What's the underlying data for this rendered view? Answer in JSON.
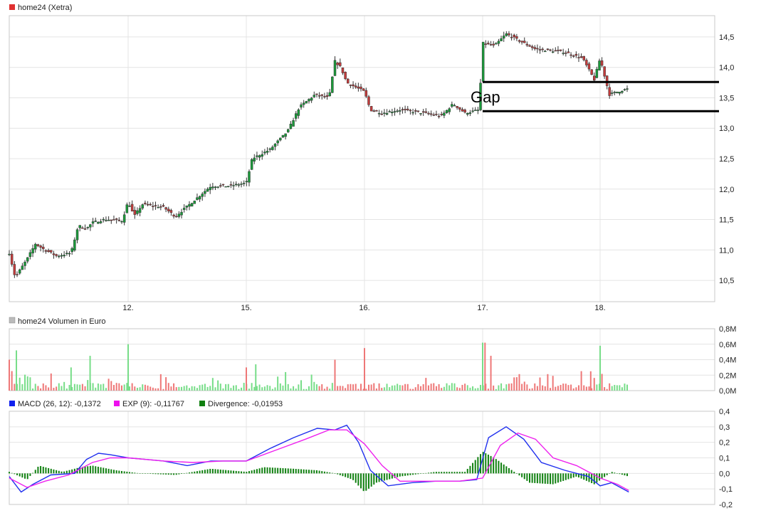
{
  "chart_data": [
    {
      "type": "candlestick",
      "title": "home24 (Xetra)",
      "title_color": "#e03030",
      "x_tick_labels": [
        "12.",
        "15.",
        "16.",
        "17.",
        "18."
      ],
      "x_tick_positions": [
        1,
        2,
        3,
        4,
        5
      ],
      "x_range": [
        0,
        6
      ],
      "ylim": [
        10.15,
        14.85
      ],
      "y_ticks": [
        10.5,
        11.0,
        11.5,
        12.0,
        12.5,
        13.0,
        13.5,
        14.0,
        14.5
      ],
      "y_tick_labels": [
        "10,5",
        "11,0",
        "11,5",
        "12,0",
        "12,5",
        "13,0",
        "13,5",
        "14,0",
        "14,5"
      ],
      "grid": true,
      "up_color": "#1a9a3a",
      "down_color": "#c43c3c",
      "price_path": [
        [
          0.0,
          10.95
        ],
        [
          0.05,
          10.55
        ],
        [
          0.15,
          10.85
        ],
        [
          0.22,
          11.1
        ],
        [
          0.3,
          11.0
        ],
        [
          0.4,
          10.9
        ],
        [
          0.52,
          10.95
        ],
        [
          0.58,
          11.4
        ],
        [
          0.65,
          11.35
        ],
        [
          0.7,
          11.45
        ],
        [
          0.8,
          11.5
        ],
        [
          0.95,
          11.48
        ],
        [
          1.0,
          11.8
        ],
        [
          1.05,
          11.55
        ],
        [
          1.12,
          11.75
        ],
        [
          1.3,
          11.7
        ],
        [
          1.4,
          11.55
        ],
        [
          1.55,
          11.8
        ],
        [
          1.7,
          12.05
        ],
        [
          1.85,
          12.05
        ],
        [
          2.0,
          12.1
        ],
        [
          2.05,
          12.5
        ],
        [
          2.2,
          12.65
        ],
        [
          2.35,
          12.95
        ],
        [
          2.45,
          13.35
        ],
        [
          2.58,
          13.55
        ],
        [
          2.7,
          13.5
        ],
        [
          2.75,
          14.1
        ],
        [
          2.8,
          14.0
        ],
        [
          2.85,
          13.75
        ],
        [
          2.95,
          13.65
        ],
        [
          3.0,
          13.6
        ],
        [
          3.05,
          13.3
        ],
        [
          3.15,
          13.25
        ],
        [
          3.3,
          13.3
        ],
        [
          3.5,
          13.25
        ],
        [
          3.65,
          13.2
        ],
        [
          3.75,
          13.4
        ],
        [
          3.85,
          13.25
        ],
        [
          3.97,
          13.3
        ],
        [
          4.0,
          14.4
        ],
        [
          4.1,
          14.35
        ],
        [
          4.2,
          14.55
        ],
        [
          4.3,
          14.45
        ],
        [
          4.45,
          14.3
        ],
        [
          4.7,
          14.25
        ],
        [
          4.85,
          14.15
        ],
        [
          4.95,
          13.8
        ],
        [
          5.0,
          14.15
        ],
        [
          5.08,
          13.55
        ],
        [
          5.15,
          13.6
        ],
        [
          5.25,
          13.65
        ]
      ],
      "annotations": {
        "text": "Gap",
        "upper_level": 13.76,
        "lower_level": 13.28,
        "x_start": 4.0,
        "x_end": 6.0
      }
    },
    {
      "type": "bar",
      "title": "home24 Volumen in Euro",
      "title_color": "#bbbbbb",
      "ylim": [
        0,
        0.8
      ],
      "y_ticks": [
        0,
        0.2,
        0.4,
        0.6,
        0.8
      ],
      "y_tick_labels": [
        "0,0M",
        "0,2M",
        "0,4M",
        "0,6M",
        "0,8M"
      ],
      "grid": true,
      "up_color": "#77dd88",
      "down_color": "#ee7777",
      "notable_bars": [
        {
          "x": 0.0,
          "value": 0.4,
          "dir": "down"
        },
        {
          "x": 0.06,
          "value": 0.52,
          "dir": "up"
        },
        {
          "x": 0.52,
          "value": 0.3,
          "dir": "up"
        },
        {
          "x": 0.68,
          "value": 0.45,
          "dir": "up"
        },
        {
          "x": 1.0,
          "value": 0.6,
          "dir": "up"
        },
        {
          "x": 1.0,
          "value": 0.28,
          "dir": "up"
        },
        {
          "x": 2.0,
          "value": 0.3,
          "dir": "down"
        },
        {
          "x": 2.08,
          "value": 0.34,
          "dir": "up"
        },
        {
          "x": 2.75,
          "value": 0.4,
          "dir": "down"
        },
        {
          "x": 3.0,
          "value": 0.55,
          "dir": "down"
        },
        {
          "x": 4.0,
          "value": 0.62,
          "dir": "up"
        },
        {
          "x": 4.02,
          "value": 0.62,
          "dir": "down"
        },
        {
          "x": 4.07,
          "value": 0.45,
          "dir": "down"
        },
        {
          "x": 5.0,
          "value": 0.58,
          "dir": "up"
        },
        {
          "x": 4.92,
          "value": 0.25,
          "dir": "down"
        }
      ]
    },
    {
      "type": "line",
      "title": "",
      "ylim": [
        -0.2,
        0.4
      ],
      "y_ticks": [
        -0.2,
        -0.1,
        0.0,
        0.1,
        0.2,
        0.3,
        0.4
      ],
      "y_tick_labels": [
        "-0,2",
        "-0,1",
        "0,0",
        "0,1",
        "0,2",
        "0,3",
        "0,4"
      ],
      "grid": true,
      "legend": [
        {
          "label": "MACD (26, 12): -0,1372",
          "color": "#1020ee"
        },
        {
          "label": "EXP (9): -0,11767",
          "color": "#ee10ee"
        },
        {
          "label": "Divergence: -0,01953",
          "color": "#108010"
        }
      ],
      "series": [
        {
          "key": "macd",
          "color": "#2030ee",
          "points": [
            [
              0.0,
              -0.02
            ],
            [
              0.1,
              -0.12
            ],
            [
              0.2,
              -0.07
            ],
            [
              0.35,
              -0.01
            ],
            [
              0.55,
              0.0
            ],
            [
              0.65,
              0.09
            ],
            [
              0.75,
              0.13
            ],
            [
              0.85,
              0.12
            ],
            [
              1.0,
              0.1
            ],
            [
              1.15,
              0.09
            ],
            [
              1.3,
              0.08
            ],
            [
              1.5,
              0.05
            ],
            [
              1.7,
              0.08
            ],
            [
              1.9,
              0.08
            ],
            [
              2.0,
              0.08
            ],
            [
              2.2,
              0.16
            ],
            [
              2.4,
              0.23
            ],
            [
              2.6,
              0.29
            ],
            [
              2.75,
              0.28
            ],
            [
              2.85,
              0.31
            ],
            [
              2.95,
              0.2
            ],
            [
              3.05,
              0.02
            ],
            [
              3.2,
              -0.08
            ],
            [
              3.4,
              -0.06
            ],
            [
              3.6,
              -0.05
            ],
            [
              3.8,
              -0.05
            ],
            [
              3.95,
              -0.04
            ],
            [
              4.05,
              0.23
            ],
            [
              4.2,
              0.3
            ],
            [
              4.35,
              0.22
            ],
            [
              4.5,
              0.07
            ],
            [
              4.7,
              0.02
            ],
            [
              4.9,
              -0.02
            ],
            [
              5.0,
              -0.08
            ],
            [
              5.1,
              -0.06
            ],
            [
              5.25,
              -0.12
            ]
          ]
        },
        {
          "key": "exp",
          "color": "#ee22ee",
          "points": [
            [
              0.0,
              -0.03
            ],
            [
              0.15,
              -0.09
            ],
            [
              0.3,
              -0.05
            ],
            [
              0.5,
              -0.01
            ],
            [
              0.7,
              0.07
            ],
            [
              0.85,
              0.1
            ],
            [
              1.0,
              0.1
            ],
            [
              1.3,
              0.08
            ],
            [
              1.55,
              0.07
            ],
            [
              1.8,
              0.08
            ],
            [
              2.0,
              0.08
            ],
            [
              2.25,
              0.15
            ],
            [
              2.5,
              0.22
            ],
            [
              2.7,
              0.28
            ],
            [
              2.85,
              0.28
            ],
            [
              3.0,
              0.19
            ],
            [
              3.15,
              0.05
            ],
            [
              3.3,
              -0.05
            ],
            [
              3.55,
              -0.05
            ],
            [
              3.8,
              -0.05
            ],
            [
              4.0,
              -0.03
            ],
            [
              4.15,
              0.18
            ],
            [
              4.3,
              0.26
            ],
            [
              4.45,
              0.22
            ],
            [
              4.6,
              0.1
            ],
            [
              4.8,
              0.05
            ],
            [
              5.0,
              -0.03
            ],
            [
              5.15,
              -0.07
            ],
            [
              5.25,
              -0.11
            ]
          ]
        },
        {
          "key": "divergence",
          "color": "#108010",
          "points": [
            [
              0.0,
              0.01
            ],
            [
              0.15,
              -0.04
            ],
            [
              0.25,
              0.05
            ],
            [
              0.45,
              0.01
            ],
            [
              0.6,
              0.04
            ],
            [
              0.7,
              0.05
            ],
            [
              0.9,
              0.02
            ],
            [
              1.1,
              0.0
            ],
            [
              1.4,
              -0.01
            ],
            [
              1.7,
              0.03
            ],
            [
              2.0,
              0.01
            ],
            [
              2.15,
              0.04
            ],
            [
              2.4,
              0.03
            ],
            [
              2.6,
              0.02
            ],
            [
              2.75,
              0.0
            ],
            [
              2.9,
              -0.04
            ],
            [
              3.0,
              -0.12
            ],
            [
              3.1,
              -0.06
            ],
            [
              3.3,
              -0.02
            ],
            [
              3.6,
              0.01
            ],
            [
              3.85,
              0.01
            ],
            [
              4.0,
              0.14
            ],
            [
              4.1,
              0.1
            ],
            [
              4.25,
              0.02
            ],
            [
              4.4,
              -0.06
            ],
            [
              4.6,
              -0.07
            ],
            [
              4.8,
              -0.02
            ],
            [
              4.95,
              -0.07
            ],
            [
              5.1,
              0.01
            ],
            [
              5.25,
              -0.02
            ]
          ]
        }
      ]
    }
  ]
}
